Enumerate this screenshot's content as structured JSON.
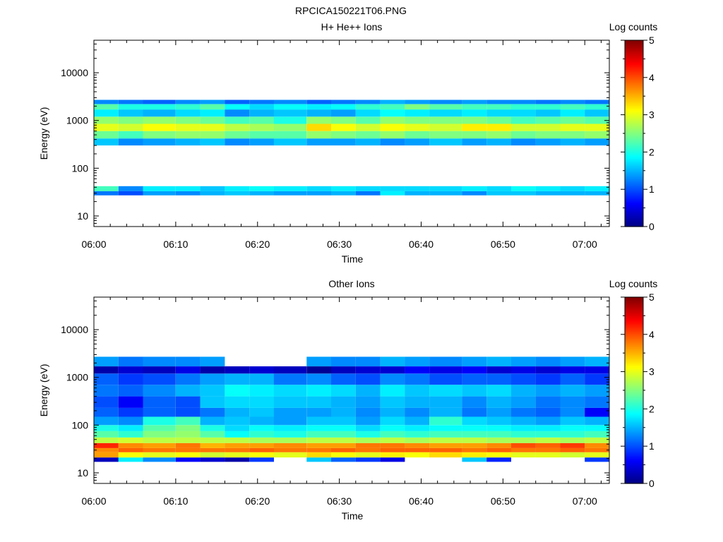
{
  "figure": {
    "title": "RPCICA150221T06.PNG"
  },
  "colors": {
    "background": "#ffffff",
    "axis": "#000000",
    "colormap": [
      "#000080",
      "#0000ff",
      "#0080ff",
      "#00ffff",
      "#80ff80",
      "#ffff00",
      "#ff8000",
      "#ff0000",
      "#800000"
    ]
  },
  "chart_data": [
    {
      "type": "heatmap",
      "title": "H+ He++ Ions",
      "xlabel": "Time",
      "ylabel": "Energy (eV)",
      "yscale": "log",
      "ylim": [
        6,
        48000
      ],
      "xlim_minutes": [
        0,
        63
      ],
      "xticks": [
        "06:00",
        "06:10",
        "06:20",
        "06:30",
        "06:40",
        "06:50",
        "07:00"
      ],
      "yticks": [
        "10",
        "100",
        "1000",
        "10000"
      ],
      "colorbar": {
        "label": "Log counts",
        "min": 0,
        "max": 5,
        "ticks": [
          "0",
          "1",
          "2",
          "3",
          "4",
          "5"
        ]
      },
      "time_bins": [
        "06:00",
        "06:03",
        "06:06",
        "06:10",
        "06:13",
        "06:16",
        "06:19",
        "06:22",
        "06:26",
        "06:29",
        "06:32",
        "06:35",
        "06:38",
        "06:41",
        "06:45",
        "06:48",
        "06:51",
        "06:54",
        "06:57",
        "07:00"
      ],
      "bands": [
        {
          "e_low": 27,
          "e_high": 33,
          "values": [
            1.2,
            1.0,
            1.4,
            1.3,
            1.5,
            1.6,
            1.5,
            1.4,
            1.4,
            1.5,
            1.2,
            1.8,
            1.5,
            1.5,
            1.3,
            1.6,
            1.6,
            1.5,
            1.5,
            1.5
          ]
        },
        {
          "e_low": 33,
          "e_high": 42,
          "values": [
            2.2,
            1.3,
            1.8,
            1.8,
            1.6,
            1.8,
            1.9,
            1.8,
            1.7,
            1.8,
            1.7,
            1.7,
            1.7,
            1.7,
            1.8,
            1.7,
            1.9,
            1.8,
            1.7,
            1.8
          ]
        },
        {
          "e_low": 300,
          "e_high": 420,
          "values": [
            1.6,
            1.3,
            1.4,
            1.5,
            1.6,
            1.3,
            1.4,
            1.6,
            1.4,
            1.4,
            1.5,
            1.3,
            1.4,
            1.6,
            1.4,
            1.5,
            1.3,
            1.4,
            1.5,
            1.4
          ]
        },
        {
          "e_low": 420,
          "e_high": 600,
          "values": [
            2.4,
            2.2,
            2.5,
            2.6,
            2.6,
            2.4,
            2.3,
            2.3,
            2.6,
            2.5,
            2.4,
            2.6,
            2.4,
            2.5,
            2.5,
            2.6,
            2.4,
            2.5,
            2.5,
            2.6
          ]
        },
        {
          "e_low": 600,
          "e_high": 850,
          "values": [
            3.0,
            2.9,
            3.1,
            3.0,
            3.0,
            2.8,
            2.7,
            2.6,
            3.3,
            3.1,
            2.9,
            3.1,
            3.0,
            2.9,
            3.2,
            3.2,
            2.9,
            2.9,
            3.0,
            3.0
          ]
        },
        {
          "e_low": 850,
          "e_high": 1200,
          "values": [
            2.6,
            2.5,
            2.6,
            2.5,
            2.4,
            2.2,
            2.3,
            2.0,
            2.6,
            2.5,
            2.3,
            2.6,
            2.5,
            2.5,
            2.5,
            2.4,
            2.2,
            2.3,
            2.4,
            2.3
          ]
        },
        {
          "e_low": 1200,
          "e_high": 1700,
          "values": [
            1.8,
            1.6,
            1.5,
            1.7,
            1.8,
            1.3,
            1.5,
            1.6,
            1.5,
            1.4,
            1.7,
            1.9,
            1.8,
            1.7,
            1.8,
            1.7,
            1.7,
            1.6,
            1.8,
            1.6
          ]
        },
        {
          "e_low": 1700,
          "e_high": 2200,
          "values": [
            2.3,
            2.0,
            2.0,
            2.1,
            2.3,
            1.9,
            1.7,
            1.9,
            1.8,
            1.9,
            2.1,
            2.2,
            2.5,
            2.3,
            2.2,
            2.2,
            2.1,
            2.1,
            2.2,
            2.1
          ]
        },
        {
          "e_low": 2200,
          "e_high": 2700,
          "values": [
            1.3,
            1.2,
            1.1,
            1.3,
            1.4,
            1.1,
            1.2,
            1.3,
            1.1,
            1.2,
            1.3,
            1.5,
            1.4,
            1.3,
            1.4,
            1.3,
            1.3,
            1.2,
            1.3,
            1.2
          ]
        }
      ]
    },
    {
      "type": "heatmap",
      "title": "Other Ions",
      "xlabel": "Time",
      "ylabel": "Energy (eV)",
      "yscale": "log",
      "ylim": [
        6,
        48000
      ],
      "xlim_minutes": [
        0,
        63
      ],
      "xticks": [
        "06:00",
        "06:10",
        "06:20",
        "06:30",
        "06:40",
        "06:50",
        "07:00"
      ],
      "yticks": [
        "10",
        "100",
        "1000",
        "10000"
      ],
      "colorbar": {
        "label": "Log counts",
        "min": 0,
        "max": 5,
        "ticks": [
          "0",
          "1",
          "2",
          "3",
          "4",
          "5"
        ]
      },
      "time_bins": [
        "06:00",
        "06:03",
        "06:06",
        "06:10",
        "06:13",
        "06:16",
        "06:19",
        "06:22",
        "06:26",
        "06:29",
        "06:32",
        "06:35",
        "06:38",
        "06:41",
        "06:45",
        "06:48",
        "06:51",
        "06:54",
        "06:57",
        "07:00"
      ],
      "bands": [
        {
          "e_low": 17,
          "e_high": 21,
          "values": [
            0.3,
            1.8,
            1.3,
            0.6,
            0.4,
            0.2,
            0.9,
            0,
            1.6,
            1.1,
            0.9,
            0.5,
            0,
            0,
            1.6,
            0.8,
            0,
            0,
            0,
            0.9
          ]
        },
        {
          "e_low": 21,
          "e_high": 27,
          "values": [
            3.6,
            3.1,
            3.0,
            3.1,
            2.9,
            3.0,
            3.1,
            3.0,
            3.3,
            3.1,
            3.0,
            3.2,
            3.1,
            3.3,
            3.2,
            3.1,
            3.0,
            3.0,
            2.9,
            3.0
          ]
        },
        {
          "e_low": 27,
          "e_high": 33,
          "values": [
            3.7,
            3.9,
            3.8,
            3.8,
            3.8,
            3.8,
            3.9,
            3.8,
            3.8,
            3.9,
            3.8,
            3.9,
            3.9,
            3.9,
            3.8,
            3.9,
            3.8,
            3.8,
            3.9,
            3.8
          ]
        },
        {
          "e_low": 33,
          "e_high": 42,
          "values": [
            4.2,
            3.7,
            3.6,
            3.8,
            3.5,
            3.6,
            3.6,
            3.7,
            3.6,
            3.6,
            3.8,
            3.8,
            3.7,
            3.6,
            3.6,
            3.7,
            4.0,
            3.9,
            4.1,
            3.7
          ]
        },
        {
          "e_low": 42,
          "e_high": 55,
          "values": [
            2.8,
            2.9,
            2.8,
            2.8,
            2.8,
            2.8,
            2.7,
            2.7,
            2.8,
            2.8,
            2.7,
            2.8,
            2.7,
            2.8,
            2.8,
            2.7,
            2.7,
            2.8,
            2.7,
            2.8
          ]
        },
        {
          "e_low": 55,
          "e_high": 75,
          "values": [
            2.3,
            2.1,
            2.5,
            2.6,
            2.3,
            1.9,
            2.1,
            2.0,
            2.2,
            2.2,
            2.0,
            2.2,
            2.1,
            2.2,
            2.2,
            2.2,
            2.1,
            2.1,
            2.1,
            2.2
          ]
        },
        {
          "e_low": 75,
          "e_high": 100,
          "values": [
            2.0,
            1.8,
            2.3,
            2.5,
            2.0,
            1.7,
            1.9,
            1.8,
            1.9,
            1.9,
            1.7,
            1.9,
            1.8,
            1.9,
            1.9,
            1.9,
            1.8,
            1.8,
            1.9,
            1.9
          ]
        },
        {
          "e_low": 100,
          "e_high": 150,
          "values": [
            1.4,
            1.3,
            2.0,
            2.2,
            1.5,
            1.6,
            1.5,
            1.4,
            1.6,
            1.6,
            1.4,
            1.7,
            1.5,
            2.1,
            1.7,
            1.6,
            1.5,
            1.4,
            1.6,
            1.5
          ]
        },
        {
          "e_low": 150,
          "e_high": 230,
          "values": [
            1.1,
            0.9,
            1.1,
            1.0,
            1.2,
            1.5,
            1.6,
            1.4,
            1.4,
            1.5,
            1.3,
            1.5,
            1.3,
            1.5,
            1.2,
            1.4,
            1.2,
            1.1,
            1.3,
            0.6
          ]
        },
        {
          "e_low": 230,
          "e_high": 400,
          "values": [
            1.0,
            0.6,
            1.1,
            1.0,
            1.6,
            1.7,
            1.7,
            1.6,
            1.6,
            1.5,
            1.4,
            1.6,
            1.5,
            1.5,
            1.3,
            1.5,
            1.4,
            1.2,
            1.3,
            1.2
          ]
        },
        {
          "e_low": 400,
          "e_high": 700,
          "values": [
            1.2,
            1.1,
            1.3,
            1.5,
            1.6,
            1.9,
            1.8,
            1.7,
            1.8,
            1.7,
            1.5,
            1.8,
            1.6,
            1.7,
            1.6,
            1.7,
            1.5,
            1.4,
            1.5,
            1.4
          ]
        },
        {
          "e_low": 700,
          "e_high": 1200,
          "values": [
            1.1,
            0.9,
            1.0,
            1.2,
            1.4,
            1.5,
            1.5,
            1.2,
            1.3,
            1.1,
            1.0,
            1.3,
            1.2,
            1.0,
            1.1,
            1.1,
            1.0,
            0.9,
            1.1,
            0.9
          ]
        },
        {
          "e_low": 1200,
          "e_high": 1700,
          "values": [
            0.2,
            0.4,
            0.3,
            0.5,
            0.2,
            0.3,
            0.4,
            0.3,
            0.1,
            0.3,
            0.4,
            0.4,
            0.6,
            0.5,
            0.6,
            0.4,
            0.5,
            0.4,
            0.5,
            0.5
          ]
        },
        {
          "e_low": 1700,
          "e_high": 2700,
          "values": [
            1.4,
            1.2,
            1.3,
            1.3,
            1.4,
            0,
            0,
            0,
            1.4,
            1.3,
            1.3,
            1.5,
            1.4,
            1.3,
            1.4,
            1.5,
            1.4,
            1.3,
            1.4,
            1.5
          ]
        }
      ]
    }
  ]
}
